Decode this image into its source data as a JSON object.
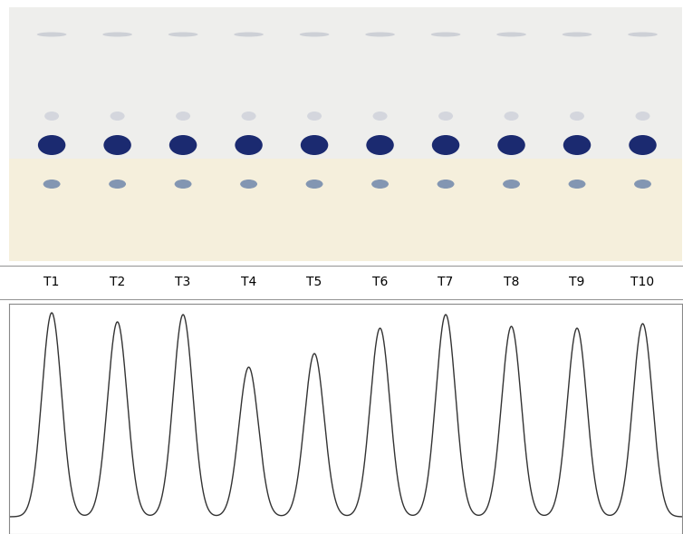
{
  "chart_data": {
    "type": "line",
    "categories": [
      "T1",
      "T2",
      "T3",
      "T4",
      "T5",
      "T6",
      "T7",
      "T8",
      "T9",
      "T10"
    ],
    "values": [
      225,
      215,
      223,
      165,
      180,
      208,
      223,
      210,
      208,
      213
    ],
    "color": "#333333",
    "ylim": [
      -19,
      235
    ],
    "yticks": [],
    "tick_labels": "x",
    "grid": false
  }
}
